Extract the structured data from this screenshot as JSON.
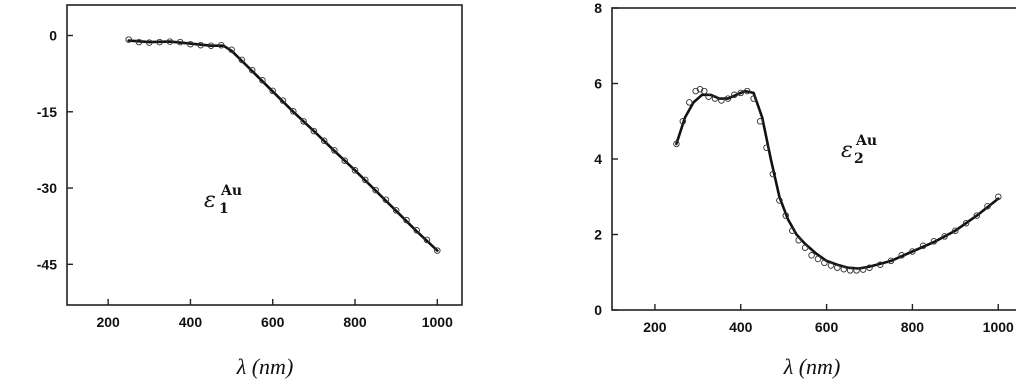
{
  "chart_data": [
    {
      "type": "line",
      "xlabel": "λ (nm)",
      "ylabel": "",
      "annotation": {
        "symbol": "ε",
        "superscript": "Au",
        "subscript": "1"
      },
      "xlim": [
        100,
        1060
      ],
      "ylim": [
        -53,
        6
      ],
      "xticks": [
        200,
        400,
        600,
        800,
        1000
      ],
      "yticks": [
        0,
        -15,
        -30,
        -45
      ],
      "grid": false,
      "series": [
        {
          "style": "line",
          "x": [
            250,
            300,
            350,
            400,
            450,
            480,
            500,
            550,
            600,
            650,
            700,
            750,
            800,
            850,
            900,
            950,
            1000
          ],
          "y": [
            -1.0,
            -1.3,
            -1.2,
            -1.6,
            -2.0,
            -2.0,
            -3.0,
            -7.0,
            -11.0,
            -15.0,
            -18.8,
            -22.7,
            -26.5,
            -30.5,
            -34.5,
            -38.5,
            -42.3
          ]
        },
        {
          "style": "markers",
          "x": [
            250,
            275,
            300,
            325,
            350,
            375,
            400,
            425,
            450,
            475,
            500,
            525,
            550,
            575,
            600,
            625,
            650,
            675,
            700,
            725,
            750,
            775,
            800,
            825,
            850,
            875,
            900,
            925,
            950,
            975,
            1000
          ],
          "y": [
            -0.8,
            -1.3,
            -1.4,
            -1.3,
            -1.2,
            -1.3,
            -1.7,
            -1.9,
            -2.0,
            -1.9,
            -2.8,
            -4.8,
            -6.8,
            -8.8,
            -10.9,
            -12.8,
            -14.9,
            -16.9,
            -18.8,
            -20.7,
            -22.6,
            -24.6,
            -26.5,
            -28.4,
            -30.4,
            -32.3,
            -34.4,
            -36.3,
            -38.3,
            -40.2,
            -42.3
          ]
        }
      ]
    },
    {
      "type": "line",
      "xlabel": "λ (nm)",
      "ylabel": "",
      "annotation": {
        "symbol": "ε",
        "superscript": "Au",
        "subscript": "2"
      },
      "xlim": [
        100,
        1060
      ],
      "ylim": [
        0,
        8
      ],
      "xticks": [
        200,
        400,
        600,
        800,
        1000
      ],
      "yticks": [
        0,
        2,
        4,
        6,
        8
      ],
      "grid": false,
      "series": [
        {
          "style": "line",
          "x": [
            250,
            270,
            290,
            310,
            330,
            350,
            370,
            390,
            410,
            430,
            450,
            470,
            490,
            510,
            530,
            550,
            575,
            600,
            625,
            650,
            675,
            700,
            750,
            800,
            850,
            900,
            950,
            1000
          ],
          "y": [
            4.4,
            5.1,
            5.5,
            5.7,
            5.7,
            5.6,
            5.6,
            5.7,
            5.8,
            5.75,
            5.1,
            4.0,
            3.0,
            2.4,
            2.0,
            1.75,
            1.5,
            1.3,
            1.2,
            1.12,
            1.1,
            1.15,
            1.3,
            1.55,
            1.8,
            2.1,
            2.5,
            2.95
          ]
        },
        {
          "style": "markers",
          "x": [
            250,
            265,
            280,
            295,
            305,
            315,
            325,
            340,
            355,
            370,
            385,
            400,
            415,
            430,
            445,
            460,
            475,
            490,
            505,
            520,
            535,
            550,
            565,
            580,
            595,
            610,
            625,
            640,
            655,
            670,
            685,
            700,
            725,
            750,
            775,
            800,
            825,
            850,
            875,
            900,
            925,
            950,
            975,
            1000
          ],
          "y": [
            4.4,
            5.0,
            5.5,
            5.8,
            5.85,
            5.8,
            5.65,
            5.6,
            5.55,
            5.6,
            5.7,
            5.75,
            5.8,
            5.6,
            5.0,
            4.3,
            3.6,
            2.9,
            2.5,
            2.1,
            1.85,
            1.65,
            1.45,
            1.35,
            1.25,
            1.18,
            1.12,
            1.08,
            1.05,
            1.05,
            1.07,
            1.12,
            1.2,
            1.3,
            1.45,
            1.55,
            1.7,
            1.82,
            1.95,
            2.1,
            2.3,
            2.5,
            2.75,
            3.0
          ]
        }
      ]
    }
  ]
}
